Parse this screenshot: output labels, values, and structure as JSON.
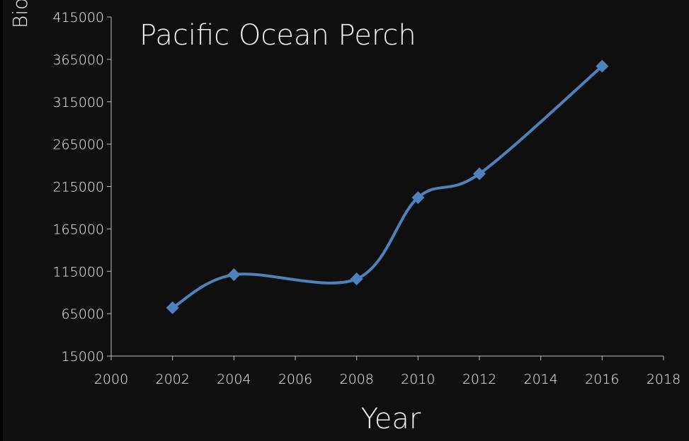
{
  "chart_data": {
    "type": "line",
    "title": "Pacific Ocean Perch",
    "xlabel": "Year",
    "ylabel": "Bio",
    "x": [
      2002,
      2004,
      2008,
      2010,
      2012,
      2016
    ],
    "series": [
      {
        "values": [
          72000,
          111000,
          106000,
          202000,
          230000,
          357000
        ],
        "color": "#4f81bd",
        "marker": "diamond",
        "smooth": true
      }
    ],
    "xlim": [
      2000,
      2018
    ],
    "ylim": [
      15000,
      415000
    ],
    "xticks": [
      2000,
      2002,
      2004,
      2006,
      2008,
      2010,
      2012,
      2014,
      2016,
      2018
    ],
    "yticks": [
      15000,
      65000,
      115000,
      165000,
      215000,
      265000,
      315000,
      365000,
      415000
    ],
    "grid": false,
    "legend": "none"
  },
  "colors": {
    "background": "#0f0f10",
    "text": "#f2f2f2",
    "axis": "#bfbfbf",
    "series": "#4f81bd"
  }
}
